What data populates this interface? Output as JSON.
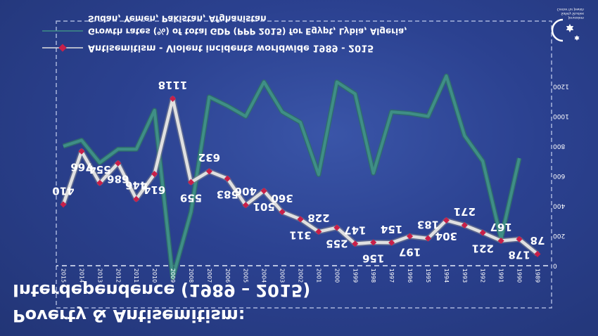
{
  "title_line1": "Interdependence (1989 – 2015)",
  "title_line2": "Poverty & Antisemitism:",
  "logo_text": [
    "Center for Jewish",
    "Safety Studies",
    "Jerusalem"
  ],
  "chart_data": {
    "type": "line",
    "orientation": "mirrored (upside-down image)",
    "x": [
      "1989",
      "1990",
      "1991",
      "1992",
      "1993",
      "1994",
      "1995",
      "1996",
      "1997",
      "1998",
      "1999",
      "2000",
      "2001",
      "2002",
      "2003",
      "2004",
      "2005",
      "2006",
      "2007",
      "2008",
      "2009",
      "2010",
      "2011",
      "2012",
      "2013",
      "2014",
      "2015"
    ],
    "y_ticks": [
      "0",
      "200",
      "400",
      "600",
      "800",
      "1000",
      "1200"
    ],
    "ylim": [
      0,
      1200
    ],
    "y_inverted": true,
    "grid": true,
    "legend_position": "top",
    "series": [
      {
        "name": "Antisemitism - Violent incidents worldwide 1989 - 2015",
        "color": "#e0e0e0",
        "marker_color": "#c8204a",
        "values": [
          78,
          178,
          167,
          221,
          271,
          304,
          183,
          197,
          154,
          156,
          147,
          255,
          228,
          311,
          360,
          501,
          406,
          583,
          632,
          559,
          1118,
          614,
          446,
          686,
          554,
          766,
          410
        ]
      },
      {
        "name": "Growth rates (%) of total GDP (PPP 2015) for Egypt, Lybia, Algeria, Sudan, Yemen, Pakistan, Afghanistan",
        "legend_lines": [
          "Growth rates (%) of total GDP (PPP 2015) for Egypt, Lybia, Algeria,",
          "Sudan, Yemen, Pakistan, Afghanistan"
        ],
        "color": "#3f8f86",
        "values": [
          null,
          720,
          180,
          700,
          870,
          1270,
          1000,
          1020,
          1030,
          620,
          1150,
          1230,
          610,
          960,
          1030,
          1230,
          1000,
          1070,
          1130,
          360,
          -80,
          1040,
          780,
          780,
          690,
          840,
          800
        ]
      }
    ]
  }
}
